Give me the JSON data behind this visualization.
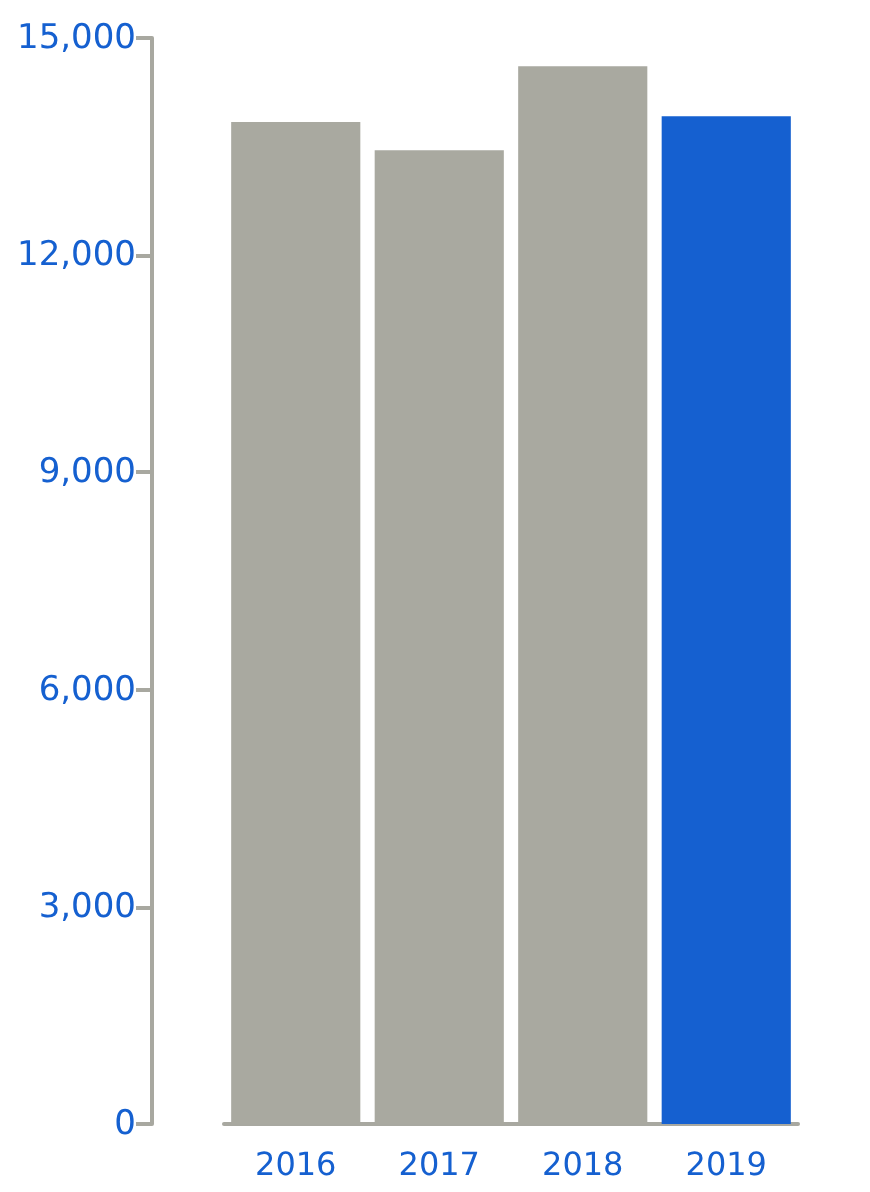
{
  "chart_data": {
    "type": "bar",
    "categories": [
      "2016",
      "2017",
      "2018",
      "2019"
    ],
    "values": [
      13840,
      13450,
      14610,
      13920
    ],
    "colors": [
      "#a9a9a0",
      "#a9a9a0",
      "#a9a9a0",
      "#1560d0"
    ],
    "ylim": [
      0,
      15000
    ],
    "yticks": [
      0,
      {
        "value": 3000,
        "label": "3,000"
      },
      {
        "value": 6000,
        "label": "6,000"
      },
      {
        "value": 9000,
        "label": "9,000"
      },
      {
        "value": 12000,
        "label": "12,000"
      },
      {
        "value": 15000,
        "label": "15,000"
      }
    ],
    "grid": false
  }
}
